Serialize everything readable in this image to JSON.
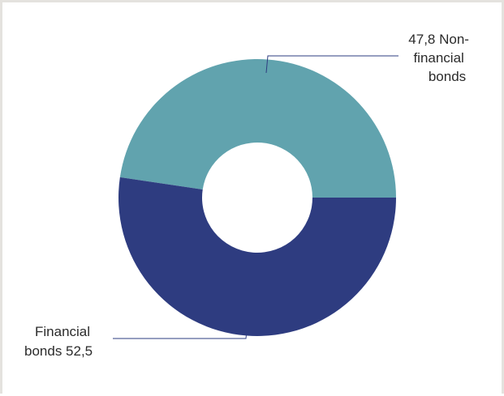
{
  "chart_data": {
    "type": "pie",
    "variant": "donut",
    "title": "",
    "slices": [
      {
        "category": "Non-financial bonds",
        "value": 47.8,
        "value_label": "47,8",
        "label_lines": [
          "47,8  Non-",
          "financial",
          "bonds"
        ],
        "color": "#61a3ae"
      },
      {
        "category": "Financial bonds",
        "value": 52.5,
        "value_label": "52,5",
        "label_lines": [
          "Financial",
          "bonds  52,5"
        ],
        "color": "#2e3c80"
      }
    ],
    "legend": "none",
    "leader_line_color": "#2e3c80",
    "background_color": "#ffffff",
    "frame_color": "#e4e2de"
  }
}
